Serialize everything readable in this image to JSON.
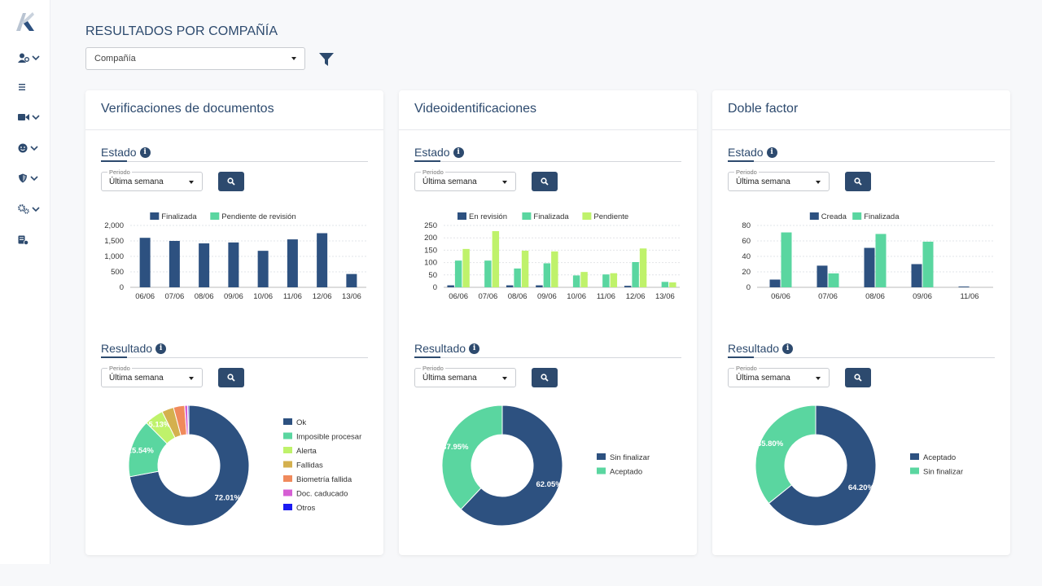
{
  "header": {
    "title": "RESULTADOS POR COMPAÑÍA",
    "company_placeholder": "Compañía"
  },
  "sidebar": {
    "items": [
      {
        "icon": "user-settings-icon",
        "has_chevron": true
      },
      {
        "icon": "menu-list-icon",
        "has_chevron": false
      },
      {
        "icon": "video-camera-icon",
        "has_chevron": true
      },
      {
        "icon": "face-icon",
        "has_chevron": true
      },
      {
        "icon": "shield-icon",
        "has_chevron": true
      },
      {
        "icon": "gears-icon",
        "has_chevron": true
      },
      {
        "icon": "document-check-icon",
        "has_chevron": false
      }
    ]
  },
  "colors": {
    "navy": "#2d5180",
    "green": "#5ad6a0",
    "lime": "#bff26b",
    "mustard": "#d4b04e",
    "orange": "#f08a5c",
    "magenta": "#d65fd4",
    "blue": "#1b1bf2"
  },
  "cards": [
    {
      "title": "Verificaciones de documentos",
      "estado": {
        "label": "Estado",
        "period_label": "Periodo",
        "period_value": "Última semana",
        "chart_data": {
          "type": "bar",
          "categories": [
            "06/06",
            "07/06",
            "08/06",
            "09/06",
            "10/06",
            "11/06",
            "12/06",
            "13/06"
          ],
          "series": [
            {
              "name": "Finalizada",
              "color": "#2d5180",
              "values": [
                1600,
                1500,
                1420,
                1450,
                1180,
                1550,
                1750,
                430
              ]
            },
            {
              "name": "Pendiente de revisión",
              "color": "#5ad6a0",
              "values": [
                0,
                0,
                0,
                0,
                0,
                0,
                0,
                0
              ]
            }
          ],
          "yticks": [
            "0",
            "500",
            "1,000",
            "1,500",
            "2,000"
          ],
          "ylim": [
            0,
            2000
          ]
        }
      },
      "resultado": {
        "label": "Resultado",
        "period_label": "Periodo",
        "period_value": "Última semana",
        "chart_data": {
          "type": "pie",
          "slices": [
            {
              "name": "Ok",
              "value": 72.01,
              "color": "#2d5180",
              "label": "72.01%"
            },
            {
              "name": "Imposible procesar",
              "value": 15.54,
              "color": "#5ad6a0",
              "label": "15.54%"
            },
            {
              "name": "Alerta",
              "value": 5.13,
              "color": "#bff26b",
              "label": "5.13%"
            },
            {
              "name": "Fallidas",
              "value": 3.2,
              "color": "#d4b04e",
              "label": ""
            },
            {
              "name": "Biometría fallida",
              "value": 3.0,
              "color": "#f08a5c",
              "label": ""
            },
            {
              "name": "Doc. caducado",
              "value": 0.8,
              "color": "#d65fd4",
              "label": ""
            },
            {
              "name": "Otros",
              "value": 0.32,
              "color": "#1b1bf2",
              "label": ""
            }
          ]
        }
      }
    },
    {
      "title": "Videoidentificaciones",
      "estado": {
        "label": "Estado",
        "period_label": "Periodo",
        "period_value": "Última semana",
        "chart_data": {
          "type": "bar",
          "categories": [
            "06/06",
            "07/06",
            "08/06",
            "09/06",
            "10/06",
            "11/06",
            "12/06",
            "13/06"
          ],
          "series": [
            {
              "name": "En revisión",
              "color": "#2d5180",
              "values": [
                8,
                0,
                8,
                8,
                0,
                0,
                6,
                0
              ]
            },
            {
              "name": "Finalizada",
              "color": "#5ad6a0",
              "values": [
                108,
                108,
                76,
                97,
                48,
                52,
                102,
                22
              ]
            },
            {
              "name": "Pendiente",
              "color": "#bff26b",
              "values": [
                155,
                227,
                148,
                145,
                62,
                57,
                157,
                20
              ]
            }
          ],
          "yticks": [
            "0",
            "50",
            "100",
            "150",
            "200",
            "250"
          ],
          "ylim": [
            0,
            250
          ]
        }
      },
      "resultado": {
        "label": "Resultado",
        "period_label": "Periodo",
        "period_value": "Última semana",
        "chart_data": {
          "type": "pie",
          "slices": [
            {
              "name": "Sin finalizar",
              "value": 62.05,
              "color": "#2d5180",
              "label": "62.05%"
            },
            {
              "name": "Aceptado",
              "value": 37.95,
              "color": "#5ad6a0",
              "label": "37.95%"
            }
          ]
        }
      }
    },
    {
      "title": "Doble factor",
      "estado": {
        "label": "Estado",
        "period_label": "Periodo",
        "period_value": "Última semana",
        "chart_data": {
          "type": "bar",
          "categories": [
            "06/06",
            "07/06",
            "08/06",
            "09/06",
            "11/06"
          ],
          "series": [
            {
              "name": "Creada",
              "color": "#2d5180",
              "values": [
                10,
                28,
                51,
                30,
                1
              ]
            },
            {
              "name": "Finalizada",
              "color": "#5ad6a0",
              "values": [
                71,
                18,
                69,
                59,
                0
              ]
            }
          ],
          "yticks": [
            "0",
            "20",
            "40",
            "60",
            "80"
          ],
          "ylim": [
            0,
            80
          ]
        }
      },
      "resultado": {
        "label": "Resultado",
        "period_label": "Periodo",
        "period_value": "Última semana",
        "chart_data": {
          "type": "pie",
          "slices": [
            {
              "name": "Aceptado",
              "value": 64.2,
              "color": "#2d5180",
              "label": "64.20%"
            },
            {
              "name": "Sin finalizar",
              "value": 35.8,
              "color": "#5ad6a0",
              "label": "35.80%"
            }
          ]
        }
      }
    }
  ]
}
